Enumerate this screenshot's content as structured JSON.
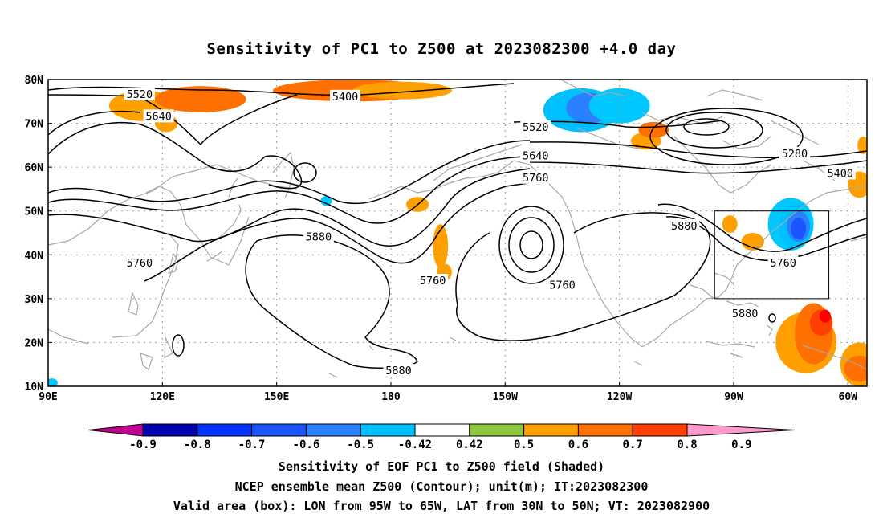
{
  "title": "Sensitivity of PC1 to Z500 at 2023082300 +4.0 day",
  "map": {
    "lon_range": [
      90,
      305
    ],
    "lat_range": [
      10,
      80
    ],
    "lon_ticks": [
      {
        "lon": 90,
        "label": "90E"
      },
      {
        "lon": 120,
        "label": "120E"
      },
      {
        "lon": 150,
        "label": "150E"
      },
      {
        "lon": 180,
        "label": "180"
      },
      {
        "lon": 210,
        "label": "150W"
      },
      {
        "lon": 240,
        "label": "120W"
      },
      {
        "lon": 270,
        "label": "90W"
      },
      {
        "lon": 300,
        "label": "60W"
      }
    ],
    "lat_ticks": [
      {
        "lat": 10,
        "label": "10N"
      },
      {
        "lat": 20,
        "label": "20N"
      },
      {
        "lat": 30,
        "label": "30N"
      },
      {
        "lat": 40,
        "label": "40N"
      },
      {
        "lat": 50,
        "label": "50N"
      },
      {
        "lat": 60,
        "label": "60N"
      },
      {
        "lat": 70,
        "label": "70N"
      },
      {
        "lat": 80,
        "label": "80N"
      }
    ],
    "valid_box": {
      "lon_min": 265,
      "lon_max": 295,
      "lat_min": 30,
      "lat_max": 50
    },
    "contour_labels": [
      {
        "text": "5520",
        "lon": 114,
        "lat": 76.5
      },
      {
        "text": "5640",
        "lon": 119,
        "lat": 71.5
      },
      {
        "text": "5400",
        "lon": 168,
        "lat": 76.0
      },
      {
        "text": "5520",
        "lon": 218,
        "lat": 69.0
      },
      {
        "text": "5640",
        "lon": 218,
        "lat": 62.5
      },
      {
        "text": "5760",
        "lon": 218,
        "lat": 57.5
      },
      {
        "text": "5280",
        "lon": 286,
        "lat": 63.0
      },
      {
        "text": "5400",
        "lon": 298,
        "lat": 58.5
      },
      {
        "text": "5760",
        "lon": 114,
        "lat": 38.0
      },
      {
        "text": "5880",
        "lon": 161,
        "lat": 44.0
      },
      {
        "text": "5760",
        "lon": 191,
        "lat": 34.0
      },
      {
        "text": "5760",
        "lon": 225,
        "lat": 33.0
      },
      {
        "text": "5880",
        "lon": 257,
        "lat": 46.5
      },
      {
        "text": "5760",
        "lon": 283,
        "lat": 38.0
      },
      {
        "text": "5880",
        "lon": 273,
        "lat": 26.5
      },
      {
        "text": "5880",
        "lon": 182,
        "lat": 13.5
      }
    ],
    "shading": [
      {
        "level": 0.5,
        "lon": 115,
        "lat": 74,
        "rlon": 9,
        "rlat": 3.5
      },
      {
        "level": 0.6,
        "lon": 130,
        "lat": 75.5,
        "rlon": 12,
        "rlat": 3
      },
      {
        "level": 0.5,
        "lon": 121,
        "lat": 70,
        "rlon": 3,
        "rlat": 2
      },
      {
        "level": 0.6,
        "lon": 170,
        "lat": 77.5,
        "rlon": 21,
        "rlat": 2.5
      },
      {
        "level": 0.5,
        "lon": 183,
        "lat": 77.5,
        "rlon": 13,
        "rlat": 2
      },
      {
        "level": -0.5,
        "lon": 230,
        "lat": 73,
        "rlon": 10,
        "rlat": 5
      },
      {
        "level": -0.6,
        "lon": 232,
        "lat": 73.5,
        "rlon": 6,
        "rlat": 3.5
      },
      {
        "level": -0.42,
        "lon": 240,
        "lat": 74,
        "rlon": 8,
        "rlat": 4
      },
      {
        "level": 0.5,
        "lon": 247,
        "lat": 66,
        "rlon": 4,
        "rlat": 2
      },
      {
        "level": 0.6,
        "lon": 249,
        "lat": 68.5,
        "rlon": 4,
        "rlat": 1.8
      },
      {
        "level": 0.5,
        "lon": 304,
        "lat": 65,
        "rlon": 1.5,
        "rlat": 2
      },
      {
        "level": 0.5,
        "lon": 303,
        "lat": 56,
        "rlon": 3,
        "rlat": 3
      },
      {
        "level": -0.42,
        "lon": 163,
        "lat": 52.3,
        "rlon": 1.5,
        "rlat": 1.1
      },
      {
        "level": 0.5,
        "lon": 187,
        "lat": 51.5,
        "rlon": 3,
        "rlat": 1.7
      },
      {
        "level": 0.5,
        "lon": 193,
        "lat": 42,
        "rlon": 2,
        "rlat": 5
      },
      {
        "level": 0.5,
        "lon": 194,
        "lat": 36,
        "rlon": 2,
        "rlat": 2
      },
      {
        "level": 0.5,
        "lon": 269,
        "lat": 47,
        "rlon": 2,
        "rlat": 2
      },
      {
        "level": 0.5,
        "lon": 275,
        "lat": 43,
        "rlon": 3,
        "rlat": 2
      },
      {
        "level": -0.42,
        "lon": 285,
        "lat": 47,
        "rlon": 6,
        "rlat": 6
      },
      {
        "level": -0.5,
        "lon": 286,
        "lat": 46.5,
        "rlon": 4,
        "rlat": 5
      },
      {
        "level": -0.6,
        "lon": 287,
        "lat": 46.5,
        "rlon": 3,
        "rlat": 3.5
      },
      {
        "level": -0.7,
        "lon": 287,
        "lat": 46,
        "rlon": 2,
        "rlat": 2.5
      },
      {
        "level": 0.5,
        "lon": 289,
        "lat": 20,
        "rlon": 8,
        "rlat": 7
      },
      {
        "level": 0.6,
        "lon": 291,
        "lat": 22,
        "rlon": 5,
        "rlat": 7
      },
      {
        "level": 0.7,
        "lon": 293,
        "lat": 24.5,
        "rlon": 3,
        "rlat": 3
      },
      {
        "level": 0.8,
        "lon": 294,
        "lat": 26,
        "rlon": 1.5,
        "rlat": 1.5
      },
      {
        "level": 0.5,
        "lon": 303,
        "lat": 15,
        "rlon": 5,
        "rlat": 5
      },
      {
        "level": 0.6,
        "lon": 303,
        "lat": 14,
        "rlon": 4,
        "rlat": 3
      },
      {
        "level": -0.42,
        "lon": 91,
        "lat": 10.8,
        "rlon": 1.5,
        "rlat": 1
      }
    ]
  },
  "colorbar": {
    "labels": [
      "-0.9",
      "-0.8",
      "-0.7",
      "-0.6",
      "-0.5",
      "-0.42",
      "0.42",
      "0.5",
      "0.6",
      "0.7",
      "0.8",
      "0.9"
    ],
    "colors": [
      "#0000b0",
      "#0033ff",
      "#1a55ff",
      "#2b80ff",
      "#00bfff",
      "#ffffff",
      "#8ec63f",
      "#ffa000",
      "#ff7000",
      "#ff4000",
      "#ff0000"
    ],
    "low_end_color": "#c0008f",
    "high_end_color": "#ff9acd"
  },
  "captions": {
    "line1": "Sensitivity of EOF PC1 to Z500 field (Shaded)",
    "line2": "NCEP ensemble mean Z500 (Contour); unit(m); IT:2023082300",
    "line3": "Valid area (box): LON from 95W to 65W, LAT from 30N to 50N; VT: 2023082900"
  }
}
